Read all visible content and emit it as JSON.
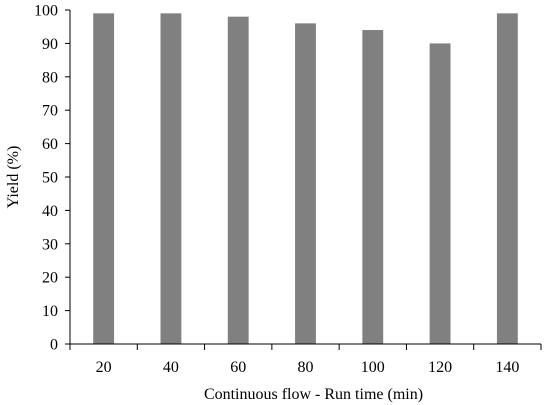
{
  "chart_data": {
    "type": "bar",
    "categories": [
      "20",
      "40",
      "60",
      "80",
      "100",
      "120",
      "140"
    ],
    "values": [
      99,
      99,
      98,
      96,
      94,
      90,
      99
    ],
    "title": "",
    "xlabel": "Continuous flow - Run time (min)",
    "ylabel": "Yield (%)",
    "ylim": [
      0,
      100
    ],
    "yticks": [
      "0",
      "10",
      "20",
      "30",
      "40",
      "50",
      "60",
      "70",
      "80",
      "90",
      "100"
    ],
    "grid": false,
    "legend": "none",
    "bar_color": "#808080",
    "axis_color": "#000000"
  }
}
